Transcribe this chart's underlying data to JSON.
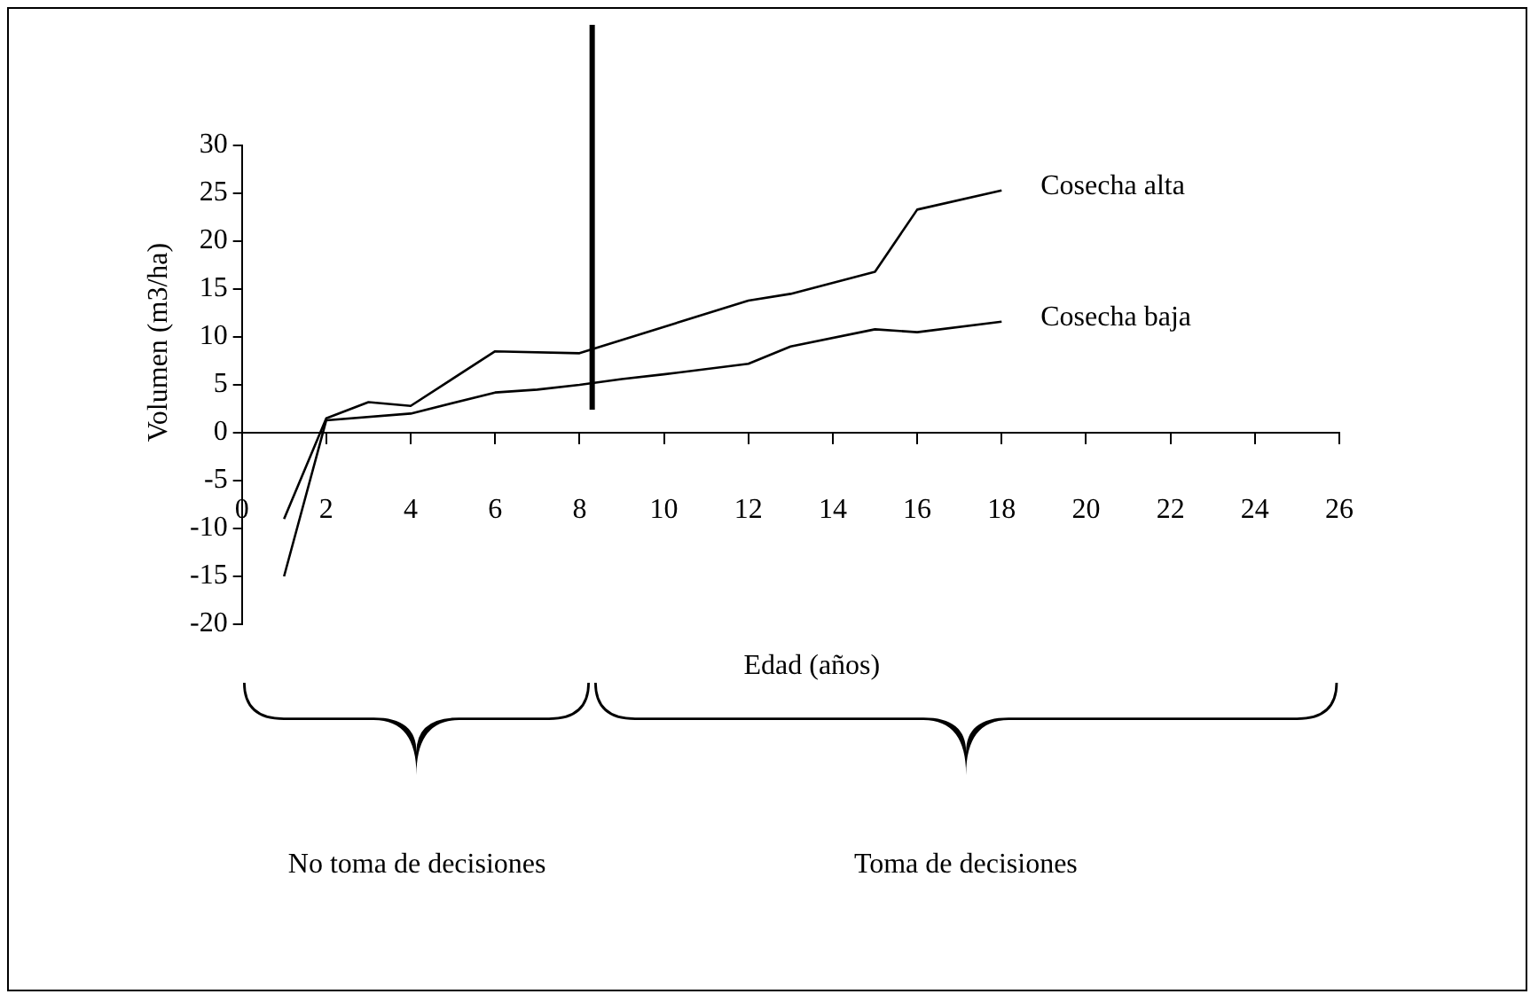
{
  "chart_data": {
    "type": "line",
    "xlabel": "Edad (años)",
    "ylabel": "Volumen (m3/ha)",
    "xlim": [
      0,
      26
    ],
    "xticks": [
      0,
      2,
      4,
      6,
      8,
      10,
      12,
      14,
      16,
      18,
      20,
      22,
      24,
      26
    ],
    "ylim": [
      -20,
      30
    ],
    "yticks": [
      -20,
      -15,
      -10,
      -5,
      0,
      5,
      10,
      15,
      20,
      25,
      30
    ],
    "grid": false,
    "legend": false,
    "marker": "none",
    "line_style": "solid",
    "series": [
      {
        "name": "Cosecha alta",
        "color": "#000000",
        "x": [
          1,
          2,
          3,
          4,
          6,
          8,
          12,
          13,
          15,
          16,
          18
        ],
        "values": [
          -9,
          1.5,
          3.2,
          2.8,
          8.5,
          8.3,
          13.8,
          14.5,
          16.8,
          23.3,
          25.3
        ]
      },
      {
        "name": "Cosecha baja",
        "color": "#000000",
        "x": [
          1,
          2,
          4,
          6,
          7,
          8,
          9,
          10,
          12,
          13,
          15,
          16,
          18
        ],
        "values": [
          -15,
          1.3,
          2,
          4.2,
          4.5,
          5,
          5.6,
          6.1,
          7.2,
          9,
          10.8,
          10.5,
          11.6
        ]
      }
    ],
    "ref_lines": [
      {
        "axis": "x",
        "value": 8.3,
        "color": "#000000"
      }
    ],
    "annotations": [
      "No toma de decisiones",
      "Toma de decisiones"
    ]
  }
}
